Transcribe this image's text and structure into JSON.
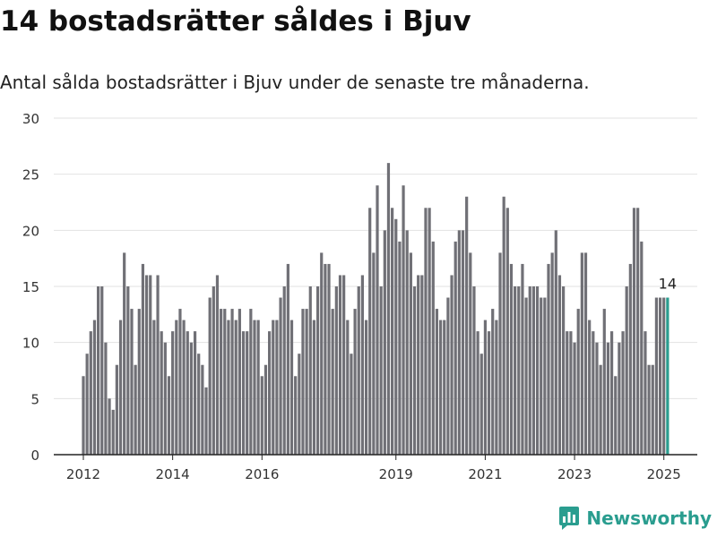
{
  "header": {
    "title": "14 bostadsrätter såldes i Bjuv",
    "subtitle": "Antal sålda bostadsrätter i Bjuv under de senaste tre månaderna."
  },
  "brand": {
    "name": "Newsworthy",
    "icon": "newsworthy-logo-icon"
  },
  "colors": {
    "bar": "#707076",
    "highlight": "#2a9d8f",
    "grid": "#e2e2e2",
    "axis": "#222222"
  },
  "chart_data": {
    "type": "bar",
    "title": "",
    "xlabel": "",
    "ylabel": "",
    "ylim": [
      0,
      30
    ],
    "yticks": [
      0,
      5,
      10,
      15,
      20,
      25,
      30
    ],
    "xticks": [
      "2012",
      "2014",
      "2016",
      "2019",
      "2021",
      "2023",
      "2025"
    ],
    "xtick_month_index": [
      0,
      24,
      48,
      84,
      108,
      132,
      156
    ],
    "grid": true,
    "legend": "none",
    "highlight_label": "14",
    "categories": [
      "2012-01",
      "2012-02",
      "2012-03",
      "2012-04",
      "2012-05",
      "2012-06",
      "2012-07",
      "2012-08",
      "2012-09",
      "2012-10",
      "2012-11",
      "2012-12",
      "2013-01",
      "2013-02",
      "2013-03",
      "2013-04",
      "2013-05",
      "2013-06",
      "2013-07",
      "2013-08",
      "2013-09",
      "2013-10",
      "2013-11",
      "2013-12",
      "2014-01",
      "2014-02",
      "2014-03",
      "2014-04",
      "2014-05",
      "2014-06",
      "2014-07",
      "2014-08",
      "2014-09",
      "2014-10",
      "2014-11",
      "2014-12",
      "2015-01",
      "2015-02",
      "2015-03",
      "2015-04",
      "2015-05",
      "2015-06",
      "2015-07",
      "2015-08",
      "2015-09",
      "2015-10",
      "2015-11",
      "2015-12",
      "2016-01",
      "2016-02",
      "2016-03",
      "2016-04",
      "2016-05",
      "2016-06",
      "2016-07",
      "2016-08",
      "2016-09",
      "2016-10",
      "2016-11",
      "2016-12",
      "2017-01",
      "2017-02",
      "2017-03",
      "2017-04",
      "2017-05",
      "2017-06",
      "2017-07",
      "2017-08",
      "2017-09",
      "2017-10",
      "2017-11",
      "2017-12",
      "2018-01",
      "2018-02",
      "2018-03",
      "2018-04",
      "2018-05",
      "2018-06",
      "2018-07",
      "2018-08",
      "2018-09",
      "2018-10",
      "2018-11",
      "2018-12",
      "2019-01",
      "2019-02",
      "2019-03",
      "2019-04",
      "2019-05",
      "2019-06",
      "2019-07",
      "2019-08",
      "2019-09",
      "2019-10",
      "2019-11",
      "2019-12",
      "2020-01",
      "2020-02",
      "2020-03",
      "2020-04",
      "2020-05",
      "2020-06",
      "2020-07",
      "2020-08",
      "2020-09",
      "2020-10",
      "2020-11",
      "2020-12",
      "2021-01",
      "2021-02",
      "2021-03",
      "2021-04",
      "2021-05",
      "2021-06",
      "2021-07",
      "2021-08",
      "2021-09",
      "2021-10",
      "2021-11",
      "2021-12",
      "2022-01",
      "2022-02",
      "2022-03",
      "2022-04",
      "2022-05",
      "2022-06",
      "2022-07",
      "2022-08",
      "2022-09",
      "2022-10",
      "2022-11",
      "2022-12",
      "2023-01",
      "2023-02",
      "2023-03",
      "2023-04",
      "2023-05",
      "2023-06",
      "2023-07",
      "2023-08",
      "2023-09",
      "2023-10",
      "2023-11",
      "2023-12",
      "2024-01",
      "2024-02",
      "2024-03",
      "2024-04",
      "2024-05",
      "2024-06",
      "2024-07",
      "2024-08",
      "2024-09",
      "2024-10",
      "2024-11",
      "2024-12",
      "2025-01",
      "2025-02"
    ],
    "values": [
      7,
      9,
      11,
      12,
      15,
      15,
      10,
      5,
      4,
      8,
      12,
      18,
      15,
      13,
      8,
      13,
      17,
      16,
      16,
      12,
      16,
      11,
      10,
      7,
      11,
      12,
      13,
      12,
      11,
      10,
      11,
      9,
      8,
      6,
      14,
      15,
      16,
      13,
      13,
      12,
      13,
      12,
      13,
      11,
      11,
      13,
      12,
      12,
      7,
      8,
      11,
      12,
      12,
      14,
      15,
      17,
      12,
      7,
      9,
      13,
      13,
      15,
      12,
      15,
      18,
      17,
      17,
      13,
      15,
      16,
      16,
      12,
      9,
      13,
      15,
      16,
      12,
      22,
      18,
      24,
      15,
      20,
      26,
      22,
      21,
      19,
      24,
      20,
      18,
      15,
      16,
      16,
      22,
      22,
      19,
      13,
      12,
      12,
      14,
      16,
      19,
      20,
      20,
      23,
      18,
      15,
      11,
      9,
      12,
      11,
      13,
      12,
      18,
      23,
      22,
      17,
      15,
      15,
      17,
      14,
      15,
      15,
      15,
      14,
      14,
      17,
      18,
      20,
      16,
      15,
      11,
      11,
      10,
      13,
      18,
      18,
      12,
      11,
      10,
      8,
      13,
      10,
      11,
      7,
      10,
      11,
      15,
      17,
      22,
      22,
      19,
      11,
      8,
      8,
      14,
      14,
      14,
      14
    ]
  }
}
